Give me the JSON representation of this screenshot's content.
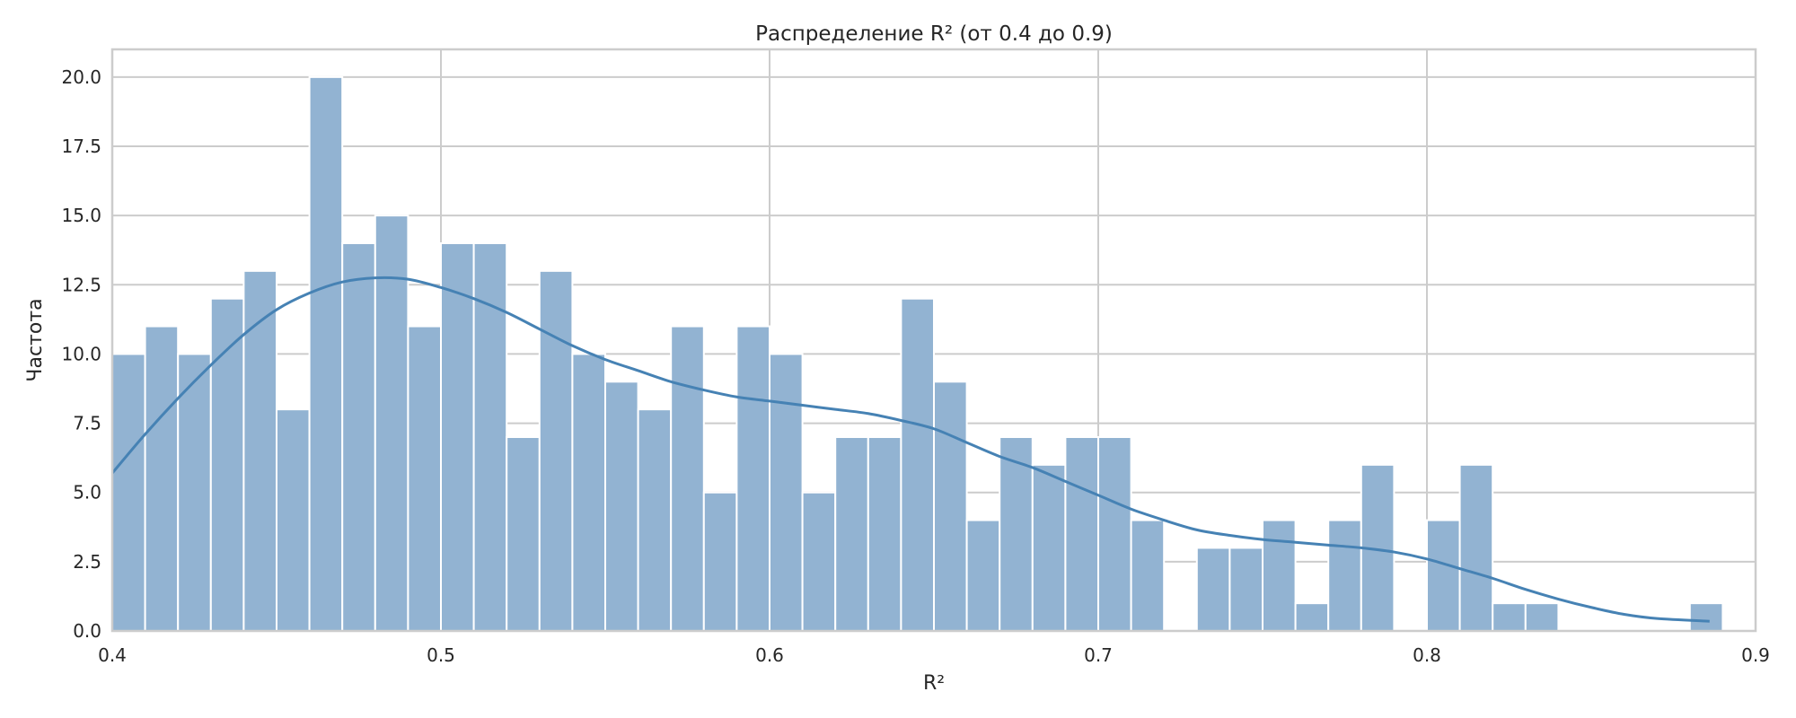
{
  "chart_data": {
    "type": "bar",
    "title": "Распределение R² (от 0.4 до 0.9)",
    "xlabel": "R²",
    "ylabel": "Частота",
    "xlim": [
      0.4,
      0.9
    ],
    "ylim": [
      0,
      21
    ],
    "grid": true,
    "x_ticks": [
      0.4,
      0.5,
      0.6,
      0.7,
      0.8,
      0.9
    ],
    "x_tick_labels": [
      "0.4",
      "0.5",
      "0.6",
      "0.7",
      "0.8",
      "0.9"
    ],
    "y_ticks": [
      0,
      2.5,
      5,
      7.5,
      10,
      12.5,
      15,
      17.5,
      20
    ],
    "y_tick_labels": [
      "0.0",
      "2.5",
      "5.0",
      "7.5",
      "10.0",
      "12.5",
      "15.0",
      "17.5",
      "20.0"
    ],
    "bins": {
      "start": 0.4,
      "end": 0.89,
      "counts": [
        10,
        11,
        10,
        12,
        13,
        8,
        20,
        14,
        15,
        11,
        14,
        14,
        7,
        13,
        10,
        9,
        8,
        11,
        5,
        11,
        10,
        5,
        7,
        7,
        12,
        9,
        4,
        7,
        6,
        7,
        7,
        4,
        0,
        3,
        3,
        4,
        1,
        4,
        6,
        0,
        4,
        6,
        1,
        1,
        0,
        0,
        0,
        0,
        1
      ]
    },
    "kde": {
      "x": [
        0.4,
        0.41,
        0.42,
        0.43,
        0.44,
        0.45,
        0.46,
        0.47,
        0.48,
        0.49,
        0.5,
        0.51,
        0.52,
        0.53,
        0.54,
        0.55,
        0.56,
        0.57,
        0.58,
        0.59,
        0.6,
        0.61,
        0.62,
        0.63,
        0.64,
        0.65,
        0.66,
        0.67,
        0.68,
        0.69,
        0.7,
        0.71,
        0.72,
        0.73,
        0.74,
        0.75,
        0.76,
        0.77,
        0.78,
        0.79,
        0.8,
        0.81,
        0.82,
        0.83,
        0.84,
        0.85,
        0.86,
        0.87,
        0.886
      ],
      "y": [
        5.7,
        7.1,
        8.4,
        9.6,
        10.7,
        11.6,
        12.2,
        12.6,
        12.75,
        12.7,
        12.4,
        12.0,
        11.5,
        10.9,
        10.3,
        9.8,
        9.4,
        9.0,
        8.7,
        8.45,
        8.3,
        8.15,
        8.0,
        7.85,
        7.6,
        7.3,
        6.8,
        6.3,
        5.9,
        5.4,
        4.9,
        4.4,
        4.0,
        3.65,
        3.45,
        3.3,
        3.2,
        3.1,
        3.0,
        2.85,
        2.6,
        2.25,
        1.9,
        1.5,
        1.15,
        0.85,
        0.6,
        0.45,
        0.35
      ]
    },
    "colors": {
      "bar": "#92b3d2",
      "line": "#4682b4",
      "grid": "#cccccc",
      "background": "#ffffff"
    }
  }
}
